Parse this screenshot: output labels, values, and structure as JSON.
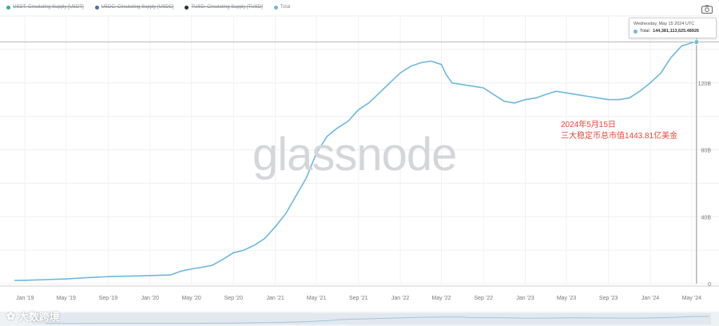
{
  "legend": [
    {
      "label": "USDT: Circulating Supply [USDT]",
      "color": "#2fb39a",
      "active": false
    },
    {
      "label": "USDC: Circulating Supply [USDC]",
      "color": "#4c72b0",
      "active": false
    },
    {
      "label": "TUSD: Circulating Supply [TUSD]",
      "color": "#243447",
      "active": false
    },
    {
      "label": "Total",
      "color": "#6cb8e0",
      "active": true
    }
  ],
  "tooltip": {
    "date": "Wednesday, May 15 2024 UTC",
    "series_label": "Total:",
    "value": "144,381,113,625.48926"
  },
  "annotation": {
    "line1": "2024年5月15日",
    "line2": "三大稳定币总市值1443.81亿美金"
  },
  "watermark": "glassnode",
  "brand": "大数跨境",
  "camera_icon": "camera-icon",
  "colors": {
    "line": "#6cb8e0",
    "grid": "#ececec",
    "annotation": "#e8453c"
  },
  "chart_data": {
    "type": "line",
    "series": [
      {
        "name": "Total",
        "x": [
          "2018-12-01",
          "2019-01-01",
          "2019-03-01",
          "2019-05-01",
          "2019-07-01",
          "2019-09-01",
          "2019-11-01",
          "2020-01-01",
          "2020-03-01",
          "2020-04-01",
          "2020-05-01",
          "2020-06-01",
          "2020-07-01",
          "2020-08-01",
          "2020-09-01",
          "2020-10-01",
          "2020-11-01",
          "2020-12-01",
          "2021-01-01",
          "2021-02-01",
          "2021-03-01",
          "2021-04-01",
          "2021-05-01",
          "2021-06-01",
          "2021-07-01",
          "2021-08-01",
          "2021-09-01",
          "2021-10-01",
          "2021-11-01",
          "2021-12-01",
          "2022-01-01",
          "2022-02-01",
          "2022-03-01",
          "2022-04-01",
          "2022-05-01",
          "2022-05-15",
          "2022-06-01",
          "2022-07-01",
          "2022-08-01",
          "2022-09-01",
          "2022-10-01",
          "2022-11-01",
          "2022-12-01",
          "2023-01-01",
          "2023-02-01",
          "2023-03-01",
          "2023-04-01",
          "2023-05-01",
          "2023-06-01",
          "2023-07-01",
          "2023-08-01",
          "2023-09-01",
          "2023-10-01",
          "2023-11-01",
          "2023-12-01",
          "2024-01-01",
          "2024-02-01",
          "2024-03-01",
          "2024-04-01",
          "2024-05-01",
          "2024-05-15"
        ],
        "y": [
          1.9,
          2.0,
          2.4,
          2.8,
          3.6,
          4.2,
          4.5,
          4.8,
          5.2,
          7.5,
          8.8,
          9.8,
          11.0,
          14.5,
          18.5,
          20.0,
          23.0,
          27.0,
          34.0,
          42.0,
          52.0,
          63.0,
          78.0,
          88.0,
          93.0,
          97.0,
          104.0,
          108.0,
          114.0,
          120.0,
          126.0,
          130.0,
          132.0,
          133.0,
          131.0,
          125.0,
          120.0,
          119.0,
          118.0,
          117.0,
          113.0,
          109.0,
          108.0,
          110.0,
          111.0,
          113.0,
          115.0,
          114.0,
          113.0,
          112.0,
          111.0,
          110.0,
          110.0,
          111.0,
          115.0,
          120.0,
          126.0,
          135.0,
          142.0,
          144.0,
          144.38
        ]
      }
    ],
    "xticks": [
      "Jan '19",
      "May '19",
      "Sep '19",
      "Jan '20",
      "May '20",
      "Sep '20",
      "Jan '21",
      "May '21",
      "Sep '21",
      "Jan '22",
      "May '22",
      "Sep '22",
      "Jan '23",
      "May '23",
      "Sep '23",
      "Jan '24",
      "May '24"
    ],
    "xtick_dates": [
      "2019-01-01",
      "2019-05-01",
      "2019-09-01",
      "2020-01-01",
      "2020-05-01",
      "2020-09-01",
      "2021-01-01",
      "2021-05-01",
      "2021-09-01",
      "2022-01-01",
      "2022-05-01",
      "2022-09-01",
      "2023-01-01",
      "2023-05-01",
      "2023-09-01",
      "2024-01-01",
      "2024-05-01"
    ],
    "yticks": [
      "0",
      "40B",
      "80B",
      "120B"
    ],
    "ytick_values": [
      0,
      40,
      80,
      120
    ],
    "ylim": [
      0,
      160
    ],
    "xlim": [
      "2018-10-20",
      "2024-05-20"
    ],
    "grid": true
  }
}
